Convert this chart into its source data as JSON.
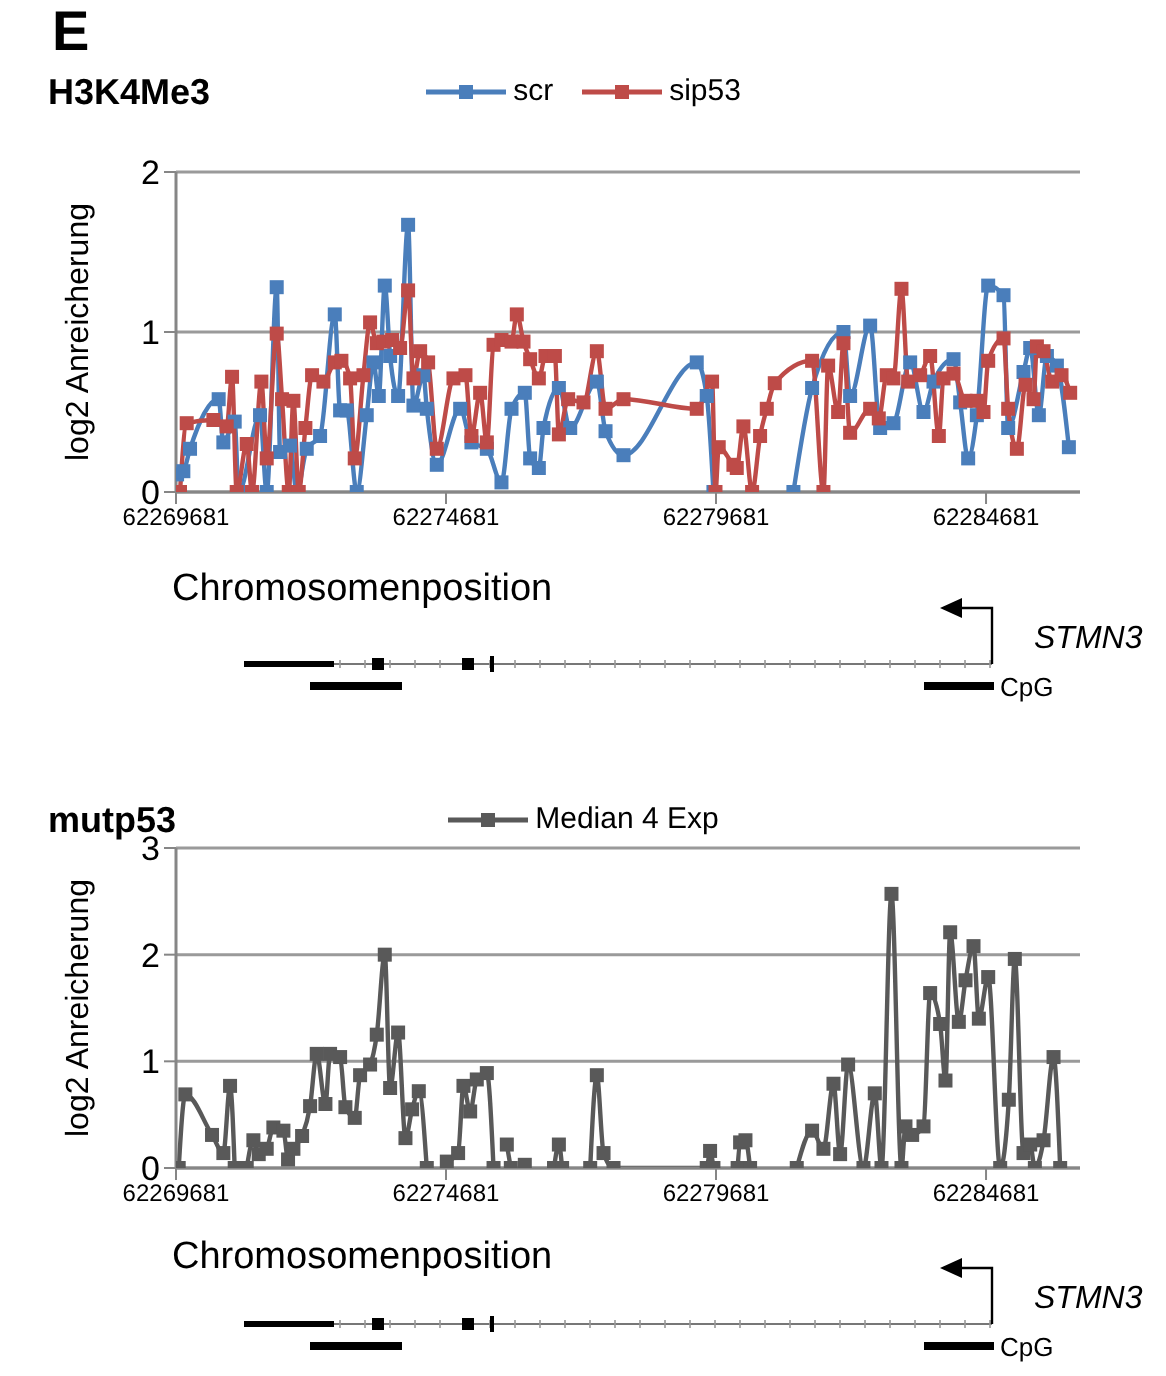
{
  "chart_data": [
    {
      "type": "line",
      "title": "H3K4Me3",
      "xlabel": "Chromosomenposition",
      "ylabel": "log2 Anreicherung",
      "xlim": [
        62269681,
        62286421
      ],
      "xticks": [
        62269681,
        62274681,
        62279681,
        62284681
      ],
      "ylim": [
        0,
        2
      ],
      "yticks": [
        0,
        1,
        2
      ],
      "grid": "y",
      "legend": "top",
      "marker": "square",
      "annotations": [
        "E",
        "STMN3",
        "CpG"
      ],
      "series": [
        {
          "name": "scr",
          "color": "#4a7ebb",
          "x": [
            62269701,
            62269817,
            62269941,
            62270471,
            62270558,
            62270768,
            62270842,
            62271237,
            62271361,
            62271546,
            62271608,
            62271793,
            62271917,
            62272102,
            62272349,
            62272621,
            62272720,
            62272843,
            62273028,
            62273213,
            62273337,
            62273436,
            62273547,
            62273646,
            62273794,
            62273979,
            62274078,
            62274263,
            62274325,
            62274510,
            62274943,
            62275152,
            62275437,
            62275708,
            62275894,
            62276140,
            62276239,
            62276400,
            62276486,
            62276771,
            62276981,
            62277474,
            62277635,
            62277968,
            62279324,
            62279509,
            62279633,
            62280381,
            62281114,
            62281460,
            62282041,
            62282164,
            62282535,
            62282720,
            62282967,
            62283276,
            62283523,
            62283708,
            62284079,
            62284202,
            62284350,
            62284511,
            62284721,
            62285005,
            62285091,
            62285375,
            62285499,
            62285659,
            62285808,
            62285993,
            62286215
          ],
          "values": [
            0.11,
            0.13,
            0.27,
            0.58,
            0.31,
            0.44,
            0,
            0.48,
            0,
            1.28,
            0.25,
            0.29,
            0,
            0.27,
            0.35,
            1.11,
            0.51,
            0.51,
            0,
            0.48,
            0.81,
            0.6,
            1.29,
            0.85,
            0.6,
            1.67,
            0.54,
            0.73,
            0.52,
            0.17,
            0.52,
            0.31,
            0.27,
            0.06,
            0.52,
            0.62,
            0.21,
            0.15,
            0.4,
            0.65,
            0.4,
            0.69,
            0.38,
            0.23,
            0.81,
            0.6,
            0,
            null,
            0,
            0.65,
            1.0,
            0.6,
            1.04,
            0.4,
            0.43,
            0.81,
            0.5,
            0.69,
            0.83,
            0.56,
            0.21,
            0.48,
            1.29,
            1.23,
            0.4,
            0.75,
            0.9,
            0.48,
            0.85,
            0.79,
            0.28
          ]
        },
        {
          "name": "sip53",
          "color": "#be4b48",
          "x": [
            62269755,
            62269879,
            62270373,
            62270620,
            62270719,
            62270805,
            62270991,
            62271089,
            62271262,
            62271361,
            62271546,
            62271645,
            62271769,
            62271855,
            62271954,
            62272077,
            62272201,
            62272411,
            62272621,
            62272744,
            62272905,
            62272991,
            62273152,
            62273275,
            62273399,
            62273522,
            62273683,
            62273831,
            62273979,
            62274078,
            62274202,
            62274350,
            62274510,
            62274819,
            62275041,
            62275152,
            62275313,
            62275437,
            62275561,
            62275708,
            62275894,
            62275992,
            62276116,
            62276239,
            62276400,
            62276523,
            62276697,
            62276771,
            62276943,
            62277227,
            62277474,
            62277635,
            62277968,
            62279324,
            62279608,
            62279671,
            62279731,
            62280003,
            62280065,
            62280188,
            62280349,
            62280497,
            62280621,
            62280769,
            62281460,
            62281670,
            62281757,
            62281942,
            62282041,
            62282164,
            62282535,
            62282695,
            62282843,
            62282967,
            62283115,
            62283239,
            62283461,
            62283646,
            62283807,
            62283893,
            62284079,
            62284301,
            62284511,
            62284634,
            62284721,
            62285005,
            62285091,
            62285252,
            62285413,
            62285561,
            62285623,
            62285746,
            62285906,
            62286079,
            62286239
          ],
          "values": [
            0,
            0.43,
            0.45,
            0.41,
            0.72,
            0,
            0.3,
            0,
            0.69,
            0.21,
            0.99,
            0.58,
            0,
            0.57,
            0,
            0.4,
            0.73,
            0.69,
            0.81,
            0.82,
            0.71,
            0.21,
            0.73,
            1.06,
            0.93,
            0.94,
            0.95,
            0.9,
            1.26,
            0.71,
            0.88,
            0.81,
            0.27,
            0.71,
            0.73,
            0.35,
            0.62,
            0.31,
            0.92,
            0.95,
            0.94,
            1.11,
            0.94,
            0.83,
            0.71,
            0.85,
            0.85,
            0.36,
            0.58,
            0.56,
            0.88,
            0.52,
            0.58,
            0.52,
            0.69,
            0,
            0.28,
            0.17,
            0.15,
            0.41,
            0,
            0.35,
            0.52,
            0.68,
            0.82,
            0,
            0.79,
            0.5,
            0.93,
            0.37,
            0.52,
            0.46,
            0.73,
            0.71,
            1.27,
            0.69,
            0.73,
            0.85,
            0.35,
            0.71,
            0.74,
            0.57,
            0.57,
            0.5,
            0.82,
            0.96,
            0.52,
            0.27,
            0.67,
            0.58,
            0.91,
            0.88,
            0.69,
            0.73,
            0.62
          ]
        }
      ]
    },
    {
      "type": "line",
      "title": "mutp53",
      "xlabel": "Chromosomenposition",
      "ylabel": "log2 Anreicherung",
      "xlim": [
        62269681,
        62286421
      ],
      "xticks": [
        62269681,
        62274681,
        62279681,
        62284681
      ],
      "ylim": [
        0,
        3
      ],
      "yticks": [
        0,
        1,
        2,
        3
      ],
      "grid": "y",
      "legend": "top",
      "marker": "square",
      "annotations": [
        "STMN3",
        "CpG"
      ],
      "series": [
        {
          "name": "Median 4 Exp",
          "color": "#595959",
          "x": [
            62269731,
            62269854,
            62270348,
            62270558,
            62270682,
            62270768,
            62270881,
            62270991,
            62271114,
            62271213,
            62271361,
            62271484,
            62271670,
            62271756,
            62271855,
            62272016,
            62272164,
            62272287,
            62272448,
            62272534,
            62272720,
            62272818,
            62272991,
            62273090,
            62273275,
            62273399,
            62273547,
            62273646,
            62273794,
            62273930,
            62274053,
            62274177,
            62274325,
            62274481,
            62274696,
            62274905,
            62275004,
            62275128,
            62275251,
            62275437,
            62275561,
            62275681,
            62275807,
            62275881,
            62275981,
            62276140,
            62276481,
            62276681,
            62276771,
            62276831,
            62276981,
            62277351,
            62277474,
            62277598,
            62277783,
            62279509,
            62279571,
            62279633,
            62279881,
            62280081,
            62280127,
            62280226,
            62280312,
            62280681,
            62281176,
            62281460,
            62281670,
            62281856,
            62281979,
            62282127,
            62282411,
            62282621,
            62282745,
            62282930,
            62283115,
            62283189,
            62283313,
            62283523,
            62283646,
            62283831,
            62283930,
            62284017,
            62284177,
            62284301,
            62284449,
            62284548,
            62284721,
            62284943,
            62285103,
            62285214,
            62285375,
            62285499,
            62285585,
            62285746,
            62285931,
            62286054
          ],
          "values": [
            0,
            0.69,
            0.31,
            0.14,
            0.77,
            0,
            null,
            0,
            0.26,
            0.13,
            0.18,
            0.38,
            0.35,
            0.08,
            0.18,
            0.3,
            0.58,
            1.07,
            0.6,
            1.07,
            1.04,
            0.57,
            0.47,
            0.87,
            0.97,
            1.25,
            2.0,
            0.75,
            1.27,
            0.28,
            0.55,
            0.72,
            0,
            null,
            0.06,
            0.14,
            0.77,
            0.53,
            0.83,
            0.89,
            0,
            null,
            0.22,
            0,
            null,
            0.03,
            null,
            0,
            0.22,
            0,
            null,
            0,
            0.87,
            0.14,
            0,
            0,
            0.16,
            0,
            null,
            0,
            0.24,
            0.26,
            0,
            null,
            0,
            0.35,
            0.18,
            0.79,
            0.13,
            0.97,
            0,
            0.7,
            0,
            2.57,
            0,
            0.39,
            0.31,
            0.39,
            1.64,
            1.35,
            0.82,
            2.21,
            1.37,
            1.76,
            2.08,
            1.4,
            1.79,
            0,
            0.64,
            1.96,
            0.14,
            0.22,
            0,
            0.26,
            1.04,
            0
          ]
        }
      ]
    }
  ]
}
